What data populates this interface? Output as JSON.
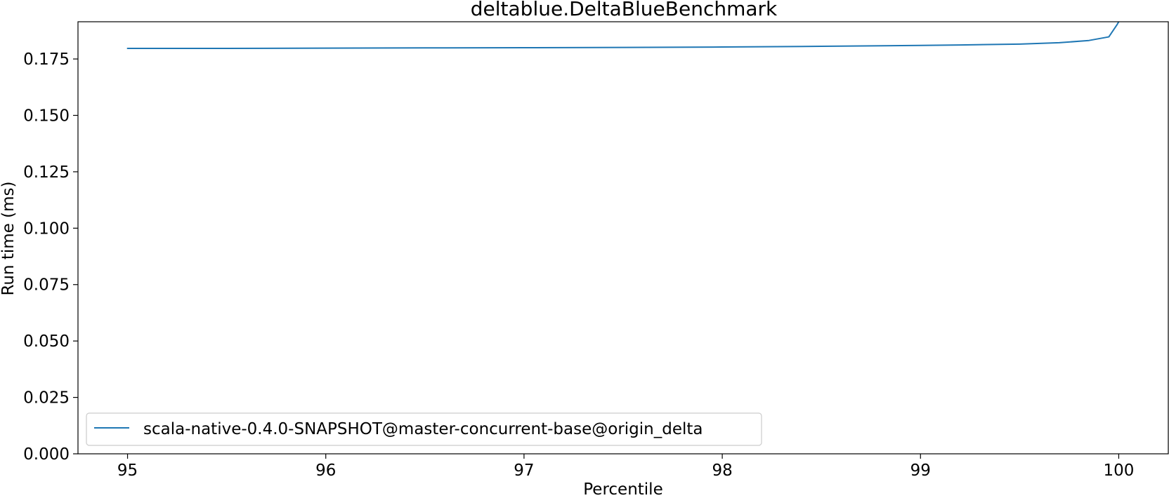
{
  "chart_data": {
    "type": "line",
    "title": "deltablue.DeltaBlueBenchmark",
    "xlabel": "Percentile",
    "ylabel": "Run time (ms)",
    "xlim": [
      94.75,
      100.25
    ],
    "ylim": [
      0.0,
      0.1915
    ],
    "xticks": [
      95,
      96,
      97,
      98,
      99,
      100
    ],
    "xtick_labels": [
      "95",
      "96",
      "97",
      "98",
      "99",
      "100"
    ],
    "yticks": [
      0.0,
      0.025,
      0.05,
      0.075,
      0.1,
      0.125,
      0.15,
      0.175
    ],
    "ytick_labels": [
      "0.000",
      "0.025",
      "0.050",
      "0.075",
      "0.100",
      "0.125",
      "0.150",
      "0.175"
    ],
    "grid": false,
    "legend_position": "lower-left",
    "series": [
      {
        "name": "scala-native-0.4.0-SNAPSHOT@master-concurrent-base@origin_delta",
        "color": "#1f77b4",
        "x": [
          95.0,
          95.5,
          96.0,
          96.5,
          97.0,
          97.5,
          98.0,
          98.5,
          99.0,
          99.2,
          99.5,
          99.7,
          99.85,
          99.95,
          99.99,
          100.0
        ],
        "y": [
          0.1797,
          0.1797,
          0.1798,
          0.1799,
          0.18,
          0.1801,
          0.1803,
          0.1806,
          0.181,
          0.1812,
          0.1816,
          0.1822,
          0.1832,
          0.1848,
          0.19,
          0.1915
        ]
      }
    ]
  }
}
